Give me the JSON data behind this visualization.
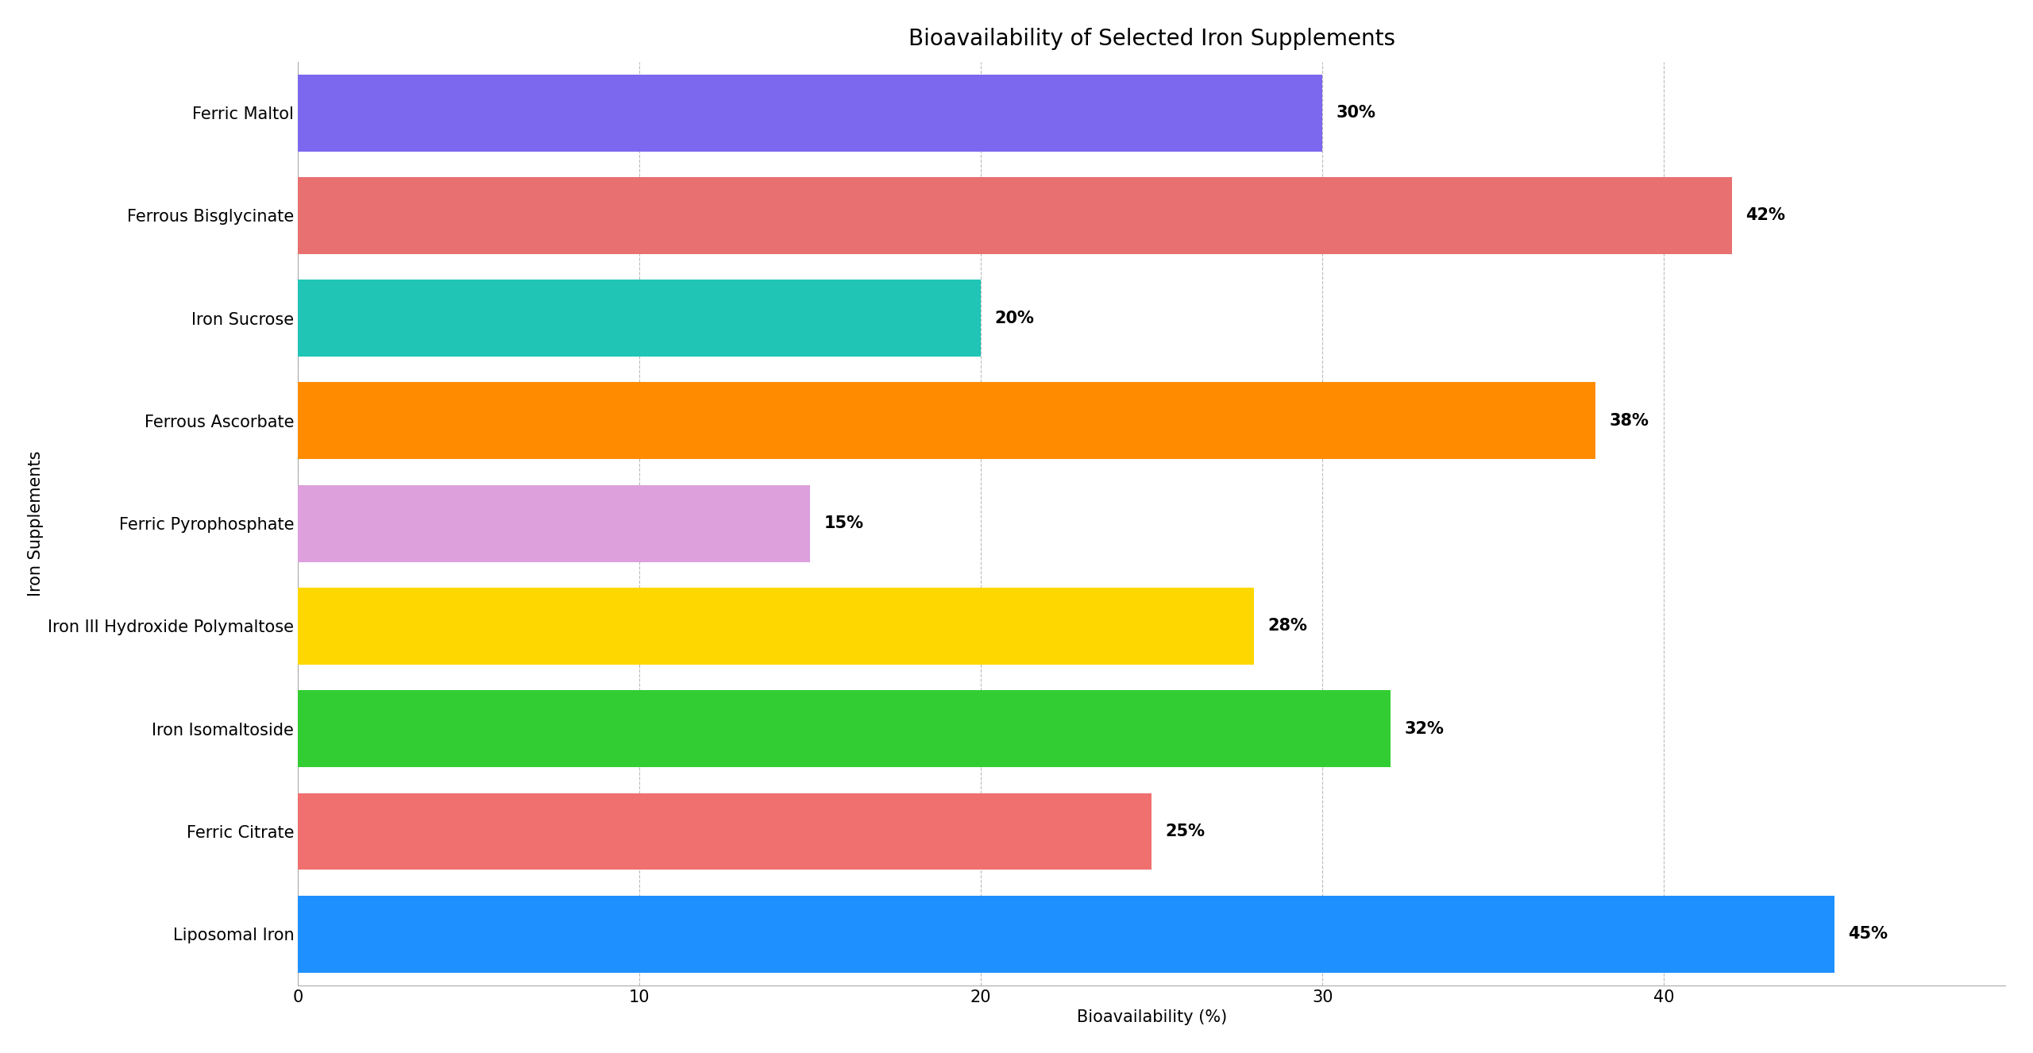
{
  "title": "Bioavailability of Selected Iron Supplements",
  "xlabel": "Bioavailability (%)",
  "ylabel": "Iron Supplements",
  "categories": [
    "Liposomal Iron",
    "Ferric Citrate",
    "Iron Isomaltoside",
    "Iron III Hydroxide Polymaltose",
    "Ferric Pyrophosphate",
    "Ferrous Ascorbate",
    "Iron Sucrose",
    "Ferrous Bisglycinate",
    "Ferric Maltol"
  ],
  "values": [
    45,
    25,
    32,
    28,
    15,
    38,
    20,
    42,
    30
  ],
  "colors": [
    "#1E90FF",
    "#F07070",
    "#32CD32",
    "#FFD700",
    "#DDA0DD",
    "#FF8C00",
    "#20C5B5",
    "#E87070",
    "#7B68EE"
  ],
  "xlim": [
    0,
    50
  ],
  "bar_height": 0.75,
  "background_color": "#FFFFFF",
  "grid_color": "#BBBBBB",
  "title_fontsize": 20,
  "label_fontsize": 15,
  "tick_fontsize": 15,
  "annotation_fontsize": 15,
  "ylabel_fontsize": 15
}
